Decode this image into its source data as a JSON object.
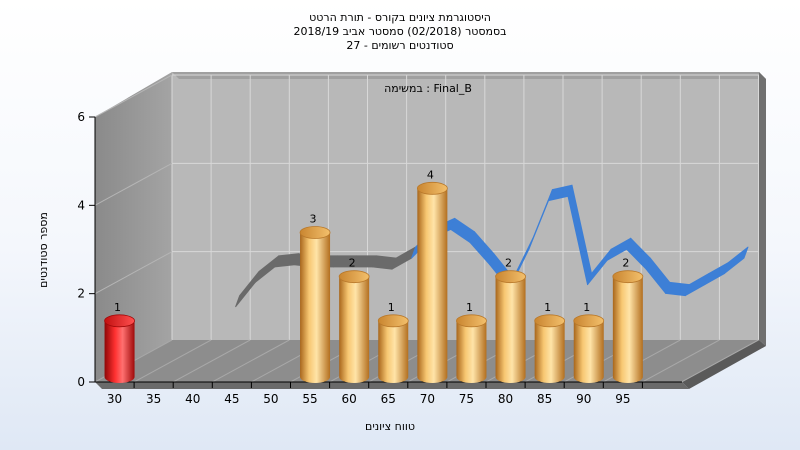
{
  "chart_data": {
    "type": "bar",
    "title": [
      "היסטוגרמת ציונים בקורס - תורת הרטט",
      "בסמסטר  (02/2018)  סמסטר אביב 2018/19",
      "סטודנטים רשומים - 27"
    ],
    "annotation": "במשימה : Final_B",
    "xlabel": "טווח ציונים",
    "ylabel": "מספר סטודנטים",
    "ylim": [
      0,
      6
    ],
    "y_ticks": [
      "0",
      "2",
      "4",
      "6"
    ],
    "x_ticks": [
      "30",
      "35",
      "40",
      "45",
      "50",
      "55",
      "60",
      "65",
      "70",
      "75",
      "80",
      "85",
      "90",
      "95"
    ],
    "categories": [
      "30",
      "55",
      "60",
      "65",
      "70",
      "75",
      "80",
      "85",
      "90",
      "95"
    ],
    "values": [
      1,
      3,
      2,
      1,
      4,
      1,
      2,
      1,
      1,
      2
    ],
    "data_labels": [
      "1",
      "3",
      "2",
      "1",
      "4",
      "1",
      "2",
      "1",
      "1",
      "2"
    ],
    "highlight_category": "30",
    "curve_x": [
      35,
      37.5,
      40,
      42.5,
      45,
      47.5,
      50,
      52.5,
      55,
      57.5,
      60,
      62.5,
      65,
      67.5,
      70,
      72.5,
      75,
      77.5,
      80,
      82.5,
      85,
      87.5,
      90,
      92.5,
      95,
      97.5,
      100
    ],
    "curve_y": [
      0.8,
      1.35,
      1.7,
      1.75,
      1.7,
      1.7,
      1.7,
      1.7,
      1.65,
      1.9,
      2.35,
      2.55,
      2.25,
      1.75,
      1.2,
      2.1,
      3.2,
      3.3,
      1.3,
      1.85,
      2.1,
      1.65,
      1.1,
      1.05,
      1.3,
      1.55,
      1.9
    ],
    "colors": {
      "bar": "#e3a040",
      "highlight": "#dd1515",
      "curve_front": "#3d7fd6",
      "curve_back": "#6a6a6a",
      "wall": "#999999",
      "floor": "#8d8d8d",
      "plot_back": "#b8b8b8"
    },
    "grid": true,
    "legend": "none"
  }
}
